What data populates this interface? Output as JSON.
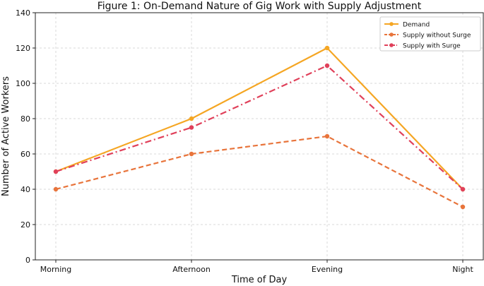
{
  "chart_data": {
    "type": "line",
    "title": "Figure 1: On-Demand Nature of Gig Work with Supply Adjustment",
    "xlabel": "Time of Day",
    "ylabel": "Number of Active Workers",
    "categories": [
      "Morning",
      "Afternoon",
      "Evening",
      "Night"
    ],
    "ylim": [
      0,
      140
    ],
    "yticks": [
      0,
      20,
      40,
      60,
      80,
      100,
      120,
      140
    ],
    "grid": true,
    "legend_position": "top-right",
    "series": [
      {
        "name": "Demand",
        "values": [
          50,
          80,
          120,
          40
        ],
        "color": "#f5a623",
        "style": "solid"
      },
      {
        "name": "Supply without Surge",
        "values": [
          40,
          60,
          70,
          30
        ],
        "color": "#e8743b",
        "style": "dashed"
      },
      {
        "name": "Supply with Surge",
        "values": [
          50,
          75,
          110,
          40
        ],
        "color": "#e0405a",
        "style": "dashdot"
      }
    ]
  }
}
